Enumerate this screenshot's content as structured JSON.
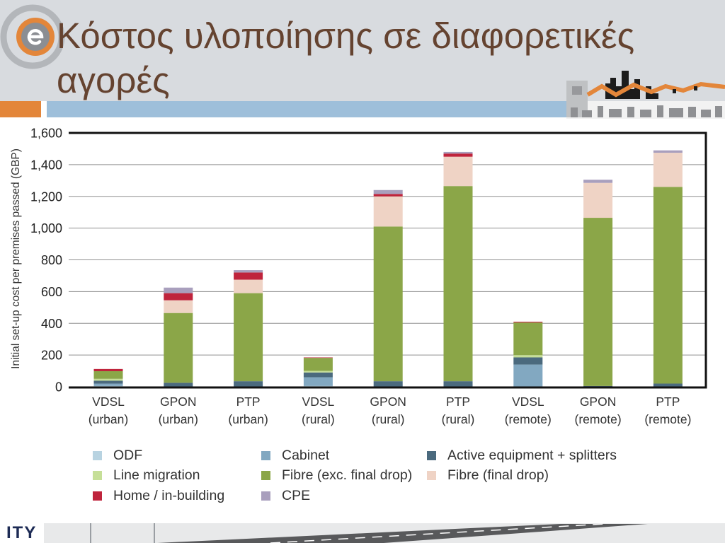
{
  "slide": {
    "title": "Κόστος υλοποίησης σε διαφορετικές αγορές",
    "footer_logo_text": "ITY"
  },
  "colors": {
    "header_background": "#d8dbdf",
    "accent_orange": "#e3863a",
    "accent_blue": "#9ebfda",
    "title_text": "#654330"
  },
  "chart_data": {
    "type": "bar",
    "stacked": true,
    "ylabel": "Initial set-up cost per premises passed (GBP)",
    "ylim": [
      0,
      1600
    ],
    "yticks": [
      0,
      200,
      400,
      600,
      800,
      1000,
      1200,
      1400,
      1600
    ],
    "ytick_labels": [
      "0",
      "200",
      "400",
      "600",
      "800",
      "1,000",
      "1,200",
      "1,400",
      "1,600"
    ],
    "grid": true,
    "legend_position": "bottom",
    "categories": [
      "VDSL (urban)",
      "GPON (urban)",
      "PTP (urban)",
      "VDSL (rural)",
      "GPON (rural)",
      "PTP (rural)",
      "VDSL (remote)",
      "GPON (remote)",
      "PTP (remote)"
    ],
    "series": [
      {
        "name": "ODF",
        "color": "#b8d3e1",
        "values": [
          5,
          0,
          0,
          5,
          0,
          0,
          0,
          0,
          0
        ]
      },
      {
        "name": "Cabinet",
        "color": "#82a8c1",
        "values": [
          15,
          0,
          0,
          55,
          0,
          0,
          140,
          0,
          0
        ]
      },
      {
        "name": "Active equipment + splitters",
        "color": "#4b6a7e",
        "values": [
          18,
          25,
          35,
          30,
          35,
          35,
          45,
          5,
          20
        ]
      },
      {
        "name": "Line migration",
        "color": "#c6df98",
        "values": [
          12,
          0,
          0,
          10,
          0,
          0,
          15,
          0,
          0
        ]
      },
      {
        "name": "Fibre (exc. final drop)",
        "color": "#8ba648",
        "values": [
          48,
          440,
          555,
          82,
          975,
          1230,
          205,
          1060,
          1240
        ]
      },
      {
        "name": "Fibre (final drop)",
        "color": "#efd3c5",
        "values": [
          0,
          80,
          85,
          0,
          190,
          185,
          0,
          220,
          215
        ]
      },
      {
        "name": "Home / in-building",
        "color": "#bf243c",
        "values": [
          14,
          45,
          45,
          3,
          15,
          20,
          5,
          0,
          0
        ]
      },
      {
        "name": "CPE",
        "color": "#a99fbd",
        "values": [
          0,
          35,
          15,
          0,
          25,
          10,
          0,
          20,
          15
        ]
      }
    ]
  }
}
